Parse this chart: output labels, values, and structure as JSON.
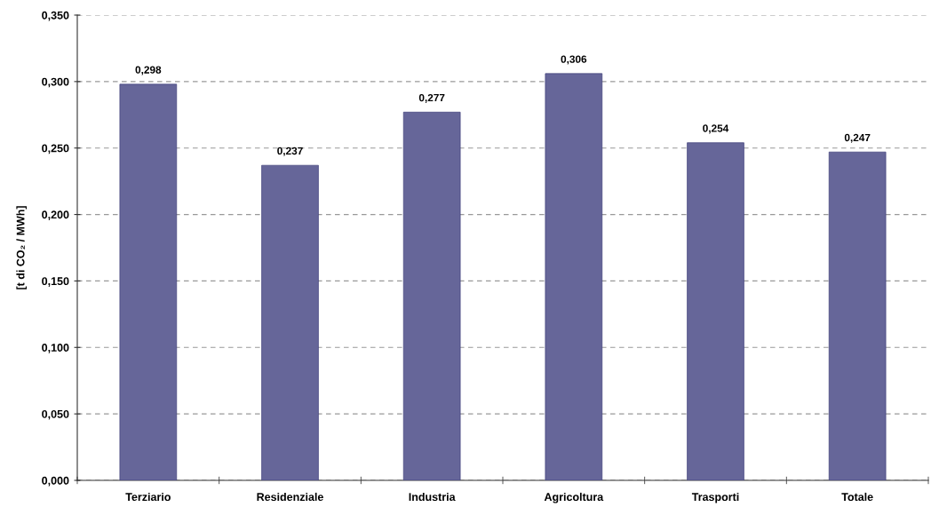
{
  "chart_data": {
    "type": "bar",
    "ylabel": "[t di CO₂ / MWh]",
    "categories": [
      "Terziario",
      "Residenziale",
      "Industria",
      "Agricoltura",
      "Trasporti",
      "Totale"
    ],
    "values": [
      0.298,
      0.237,
      0.277,
      0.306,
      0.254,
      0.247
    ],
    "value_labels": [
      "0,298",
      "0,237",
      "0,277",
      "0,306",
      "0,254",
      "0,247"
    ],
    "color": "#666699",
    "ylim": [
      0,
      0.35
    ],
    "yticks": [
      {
        "value": 0,
        "label": "0,000"
      },
      {
        "value": 0.05,
        "label": "0,050"
      },
      {
        "value": 0.1,
        "label": "0,100"
      },
      {
        "value": 0.15,
        "label": "0,150"
      },
      {
        "value": 0.2,
        "label": "0,200"
      },
      {
        "value": 0.25,
        "label": "0,250"
      },
      {
        "value": 0.3,
        "label": "0,300"
      },
      {
        "value": 0.35,
        "label": "0,350"
      }
    ],
    "grid": "y"
  }
}
